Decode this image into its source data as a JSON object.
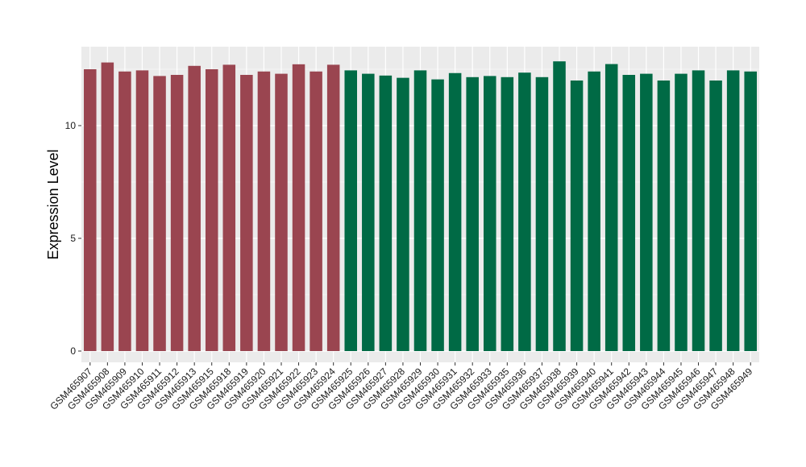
{
  "chart_data": {
    "type": "bar",
    "title": "",
    "xlabel": "",
    "ylabel": "Expression Level",
    "ylim": [
      -0.5,
      13.5
    ],
    "yticks": [
      0,
      5,
      10
    ],
    "grid": true,
    "legend": "none",
    "colors": {
      "group_a": "#9A4550",
      "group_b": "#006A45",
      "panel": "#EBEBEB",
      "gridline": "#FFFFFF"
    },
    "categories": [
      "GSM465907",
      "GSM465908",
      "GSM465909",
      "GSM465910",
      "GSM465911",
      "GSM465912",
      "GSM465913",
      "GSM465915",
      "GSM465918",
      "GSM465919",
      "GSM465920",
      "GSM465921",
      "GSM465922",
      "GSM465923",
      "GSM465924",
      "GSM465925",
      "GSM465926",
      "GSM465927",
      "GSM465928",
      "GSM465929",
      "GSM465930",
      "GSM465931",
      "GSM465932",
      "GSM465933",
      "GSM465935",
      "GSM465936",
      "GSM465937",
      "GSM465938",
      "GSM465939",
      "GSM465940",
      "GSM465941",
      "GSM465942",
      "GSM465943",
      "GSM465944",
      "GSM465945",
      "GSM465946",
      "GSM465947",
      "GSM465948",
      "GSM465949"
    ],
    "values": [
      12.5,
      12.8,
      12.4,
      12.45,
      12.2,
      12.25,
      12.65,
      12.5,
      12.7,
      12.25,
      12.4,
      12.3,
      12.72,
      12.4,
      12.7,
      12.45,
      12.3,
      12.22,
      12.12,
      12.45,
      12.05,
      12.33,
      12.15,
      12.2,
      12.15,
      12.35,
      12.15,
      12.85,
      12.0,
      12.4,
      12.73,
      12.25,
      12.3,
      12.0,
      12.3,
      12.45,
      12.0,
      12.45,
      12.4
    ],
    "groups": [
      "a",
      "a",
      "a",
      "a",
      "a",
      "a",
      "a",
      "a",
      "a",
      "a",
      "a",
      "a",
      "a",
      "a",
      "a",
      "b",
      "b",
      "b",
      "b",
      "b",
      "b",
      "b",
      "b",
      "b",
      "b",
      "b",
      "b",
      "b",
      "b",
      "b",
      "b",
      "b",
      "b",
      "b",
      "b",
      "b",
      "b",
      "b",
      "b"
    ]
  }
}
